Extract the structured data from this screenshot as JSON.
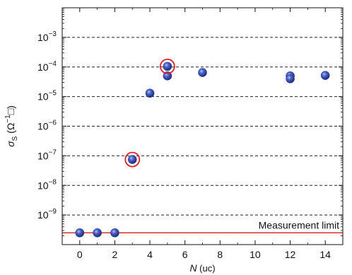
{
  "chart_data": {
    "type": "scatter",
    "xlabel_var": "N",
    "xlabel_unit": " (uc)",
    "ylabel_var": "σ",
    "ylabel_sub": "S",
    "ylabel_unit": "(Ω",
    "ylabel_sup": "−1",
    "ylabel_tail": "□)",
    "xlim": [
      -1,
      15
    ],
    "x_ticks": [
      0,
      2,
      4,
      6,
      8,
      10,
      12,
      14
    ],
    "y_scale": "log",
    "ylim": [
      1e-10,
      0.01
    ],
    "y_ticks": [
      {
        "exp": -9,
        "base": "10",
        "sup": "−9"
      },
      {
        "exp": -8,
        "base": "10",
        "sup": "−8"
      },
      {
        "exp": -7,
        "base": "10",
        "sup": "−7"
      },
      {
        "exp": -6,
        "base": "10",
        "sup": "−6"
      },
      {
        "exp": -5,
        "base": "10",
        "sup": "−5"
      },
      {
        "exp": -4,
        "base": "10",
        "sup": "−4"
      },
      {
        "exp": -3,
        "base": "10",
        "sup": "−3"
      }
    ],
    "grid": "horizontal dashed at decades",
    "measurement_limit": {
      "label": "Measurement limit",
      "y": 2.5e-10,
      "color": "#d42020"
    },
    "points": [
      {
        "x": 0,
        "y": 2.5e-10
      },
      {
        "x": 1,
        "y": 2.5e-10
      },
      {
        "x": 2,
        "y": 2.5e-10
      },
      {
        "x": 3,
        "y": 7.5e-08,
        "highlighted": true
      },
      {
        "x": 4,
        "y": 1.3e-05
      },
      {
        "x": 5,
        "y": 5e-05
      },
      {
        "x": 5,
        "y": 0.000105,
        "highlighted": true
      },
      {
        "x": 7,
        "y": 6.5e-05
      },
      {
        "x": 12,
        "y": 5e-05
      },
      {
        "x": 12,
        "y": 4e-05
      },
      {
        "x": 14,
        "y": 5.2e-05
      }
    ],
    "marker_color": "#2a3f9e",
    "highlight_color": "#e02020"
  }
}
